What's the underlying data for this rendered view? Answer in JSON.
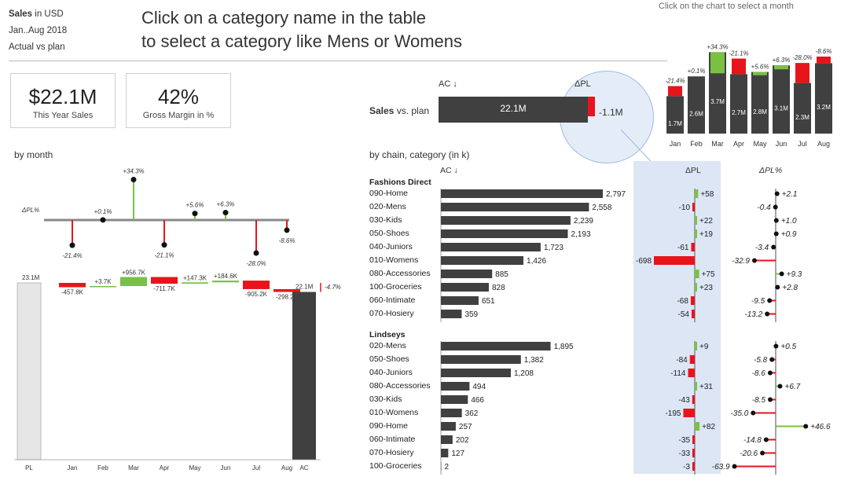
{
  "header": {
    "title_bold": "Sales",
    "title_rest": " in USD",
    "period": "Jan..Aug 2018",
    "comparison": "Actual vs plan",
    "instruction_line1": "Click on a category name in the table",
    "instruction_line2": "to select a category like Mens or Womens",
    "chart_hint": "Click on the chart to select a month"
  },
  "kpis": [
    {
      "value": "$22.1M",
      "label": "This Year Sales"
    },
    {
      "value": "42%",
      "label": "Gross Margin in %"
    }
  ],
  "sales_vs_plan": {
    "label_bold": "Sales",
    "label_rest": " vs. plan",
    "ac_header": "AC ↓",
    "dpl_header": "ΔPL",
    "ac_value": "22.1M",
    "dpl_value": "-1.1M"
  },
  "colors": {
    "bar": "#404040",
    "positive": "#7ac143",
    "negative": "#e8141c",
    "highlight": "#dce6f5",
    "pl": "#e6e6e6"
  },
  "by_month": {
    "title": "by month",
    "dpl_pct_label": "ΔPL%",
    "pct_labels": [
      "-21.4%",
      "+0.1%",
      "+34.3%",
      "-21.1%",
      "+5.6%",
      "+6.3%",
      "-28.0%",
      "-8.6%"
    ],
    "waterfall_labels": [
      "-457.8K",
      "+3.7K",
      "+956.7K",
      "-711.7K",
      "+147.3K",
      "+184.6K",
      "-905.2K",
      "-298.2K"
    ],
    "pl_value": "23.1M",
    "ac_value": "22.1M",
    "total_pct": "-4.7%",
    "x_labels": [
      "PL",
      "Jan",
      "Feb",
      "Mar",
      "Apr",
      "May",
      "Jun",
      "Jul",
      "Aug",
      "AC"
    ]
  },
  "chart_data": [
    {
      "type": "bar",
      "title": "Click on the chart to select a month",
      "categories": [
        "Jan",
        "Feb",
        "Mar",
        "Apr",
        "May",
        "Jun",
        "Jul",
        "Aug"
      ],
      "series": [
        {
          "values": [
            1.7,
            2.6,
            3.7,
            2.7,
            2.8,
            3.1,
            2.3,
            3.2
          ]
        }
      ],
      "value_labels": [
        "1.7M",
        "2.6M",
        "3.7M",
        "2.7M",
        "2.8M",
        "3.1M",
        "2.3M",
        "3.2M"
      ],
      "delta_pct": [
        -21.4,
        0.1,
        34.3,
        -21.1,
        5.6,
        6.3,
        -28.0,
        -8.6
      ],
      "delta_pct_labels": [
        "-21.4%",
        "+0.1%",
        "+34.3%",
        "-21.1%",
        "+5.6%",
        "+6.3%",
        "-28.0%",
        "-8.6%"
      ],
      "delta_abs_m": [
        -0.46,
        0.0037,
        0.96,
        -0.71,
        0.15,
        0.18,
        -0.91,
        -0.3
      ]
    },
    {
      "type": "bar",
      "title": "by month",
      "categories": [
        "Jan",
        "Feb",
        "Mar",
        "Apr",
        "May",
        "Jun",
        "Jul",
        "Aug"
      ],
      "delta_pct": [
        -21.4,
        0.1,
        34.3,
        -21.1,
        5.6,
        6.3,
        -28.0,
        -8.6
      ],
      "waterfall_k": [
        -457.8,
        3.7,
        956.7,
        -711.7,
        147.3,
        184.6,
        -905.2,
        -298.2
      ],
      "pl_total_m": 23.1,
      "ac_total_m": 22.1
    },
    {
      "type": "bar",
      "title": "by chain, category (in k)",
      "groups": [
        {
          "name": "Fashions Direct",
          "rows": [
            {
              "category": "090-Home",
              "ac": 2797,
              "ac_label": "2,797",
              "dpl": 58,
              "dpl_label": "+58",
              "dpl_pct": 2.1,
              "dpl_pct_label": "+2.1"
            },
            {
              "category": "020-Mens",
              "ac": 2558,
              "ac_label": "2,558",
              "dpl": -10,
              "dpl_label": "-10",
              "dpl_pct": -0.4,
              "dpl_pct_label": "-0.4"
            },
            {
              "category": "030-Kids",
              "ac": 2239,
              "ac_label": "2,239",
              "dpl": 22,
              "dpl_label": "+22",
              "dpl_pct": 1.0,
              "dpl_pct_label": "+1.0"
            },
            {
              "category": "050-Shoes",
              "ac": 2193,
              "ac_label": "2,193",
              "dpl": 19,
              "dpl_label": "+19",
              "dpl_pct": 0.9,
              "dpl_pct_label": "+0.9"
            },
            {
              "category": "040-Juniors",
              "ac": 1723,
              "ac_label": "1,723",
              "dpl": -61,
              "dpl_label": "-61",
              "dpl_pct": -3.4,
              "dpl_pct_label": "-3.4"
            },
            {
              "category": "010-Womens",
              "ac": 1426,
              "ac_label": "1,426",
              "dpl": -698,
              "dpl_label": "-698",
              "dpl_pct": -32.9,
              "dpl_pct_label": "-32.9"
            },
            {
              "category": "080-Accessories",
              "ac": 885,
              "ac_label": "885",
              "dpl": 75,
              "dpl_label": "+75",
              "dpl_pct": 9.3,
              "dpl_pct_label": "+9.3"
            },
            {
              "category": "100-Groceries",
              "ac": 828,
              "ac_label": "828",
              "dpl": 23,
              "dpl_label": "+23",
              "dpl_pct": 2.8,
              "dpl_pct_label": "+2.8"
            },
            {
              "category": "060-Intimate",
              "ac": 651,
              "ac_label": "651",
              "dpl": -68,
              "dpl_label": "-68",
              "dpl_pct": -9.5,
              "dpl_pct_label": "-9.5"
            },
            {
              "category": "070-Hosiery",
              "ac": 359,
              "ac_label": "359",
              "dpl": -54,
              "dpl_label": "-54",
              "dpl_pct": -13.2,
              "dpl_pct_label": "-13.2"
            }
          ]
        },
        {
          "name": "Lindseys",
          "rows": [
            {
              "category": "020-Mens",
              "ac": 1895,
              "ac_label": "1,895",
              "dpl": 9,
              "dpl_label": "+9",
              "dpl_pct": 0.5,
              "dpl_pct_label": "+0.5"
            },
            {
              "category": "050-Shoes",
              "ac": 1382,
              "ac_label": "1,382",
              "dpl": -84,
              "dpl_label": "-84",
              "dpl_pct": -5.8,
              "dpl_pct_label": "-5.8"
            },
            {
              "category": "040-Juniors",
              "ac": 1208,
              "ac_label": "1,208",
              "dpl": -114,
              "dpl_label": "-114",
              "dpl_pct": -8.6,
              "dpl_pct_label": "-8.6"
            },
            {
              "category": "080-Accessories",
              "ac": 494,
              "ac_label": "494",
              "dpl": 31,
              "dpl_label": "+31",
              "dpl_pct": 6.7,
              "dpl_pct_label": "+6.7"
            },
            {
              "category": "030-Kids",
              "ac": 466,
              "ac_label": "466",
              "dpl": -43,
              "dpl_label": "-43",
              "dpl_pct": -8.5,
              "dpl_pct_label": "-8.5"
            },
            {
              "category": "010-Womens",
              "ac": 362,
              "ac_label": "362",
              "dpl": -195,
              "dpl_label": "-195",
              "dpl_pct": -35.0,
              "dpl_pct_label": "-35.0"
            },
            {
              "category": "090-Home",
              "ac": 257,
              "ac_label": "257",
              "dpl": 82,
              "dpl_label": "+82",
              "dpl_pct": 46.6,
              "dpl_pct_label": "+46.6"
            },
            {
              "category": "060-Intimate",
              "ac": 202,
              "ac_label": "202",
              "dpl": -35,
              "dpl_label": "-35",
              "dpl_pct": -14.8,
              "dpl_pct_label": "-14.8"
            },
            {
              "category": "070-Hosiery",
              "ac": 127,
              "ac_label": "127",
              "dpl": -33,
              "dpl_label": "-33",
              "dpl_pct": -20.6,
              "dpl_pct_label": "-20.6"
            },
            {
              "category": "100-Groceries",
              "ac": 2,
              "ac_label": "2",
              "dpl": -3,
              "dpl_label": "-3",
              "dpl_pct": -63.9,
              "dpl_pct_label": "-63.9"
            }
          ]
        }
      ]
    }
  ],
  "table": {
    "title": "by chain, category (in k)",
    "ac_header": "AC ↓",
    "dpl_header": "ΔPL",
    "dpl_pct_header": "ΔPL%"
  }
}
